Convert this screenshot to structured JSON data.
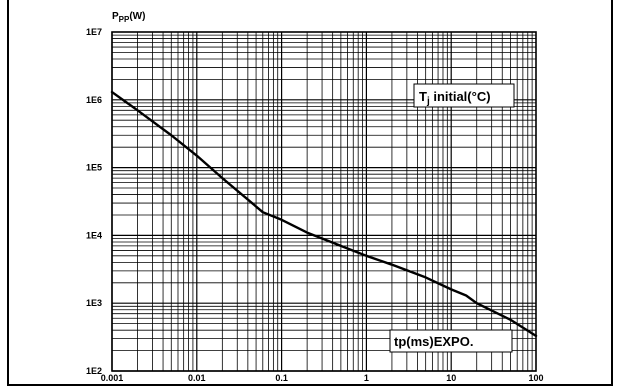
{
  "chart_data": {
    "type": "line",
    "x_scale": "log",
    "y_scale": "log",
    "xlim": [
      0.001,
      100
    ],
    "ylim": [
      100,
      10000000
    ],
    "x_ticks": [
      "0.001",
      "0.01",
      "0.1",
      "1",
      "10",
      "100"
    ],
    "y_ticks": [
      "1E2",
      "1E3",
      "1E4",
      "1E5",
      "1E6",
      "1E7"
    ],
    "ylabel": {
      "main": "P",
      "sub": "PP",
      "unit": "(W)"
    },
    "xlabel": "tp(ms)EXPO.",
    "annotation": {
      "main": "T",
      "sub": "j",
      "rest": " initial(°C)"
    },
    "grid": true,
    "series": [
      {
        "x": [
          0.001,
          0.002,
          0.005,
          0.01,
          0.02,
          0.06,
          0.1,
          0.2,
          0.5,
          1,
          2,
          5,
          10,
          15,
          20,
          50,
          100
        ],
        "y": [
          1300000,
          700000,
          300000,
          150000,
          70000,
          22000,
          17000,
          11000,
          7000,
          5000,
          3700,
          2400,
          1600,
          1300,
          1000,
          570,
          330
        ]
      }
    ]
  }
}
